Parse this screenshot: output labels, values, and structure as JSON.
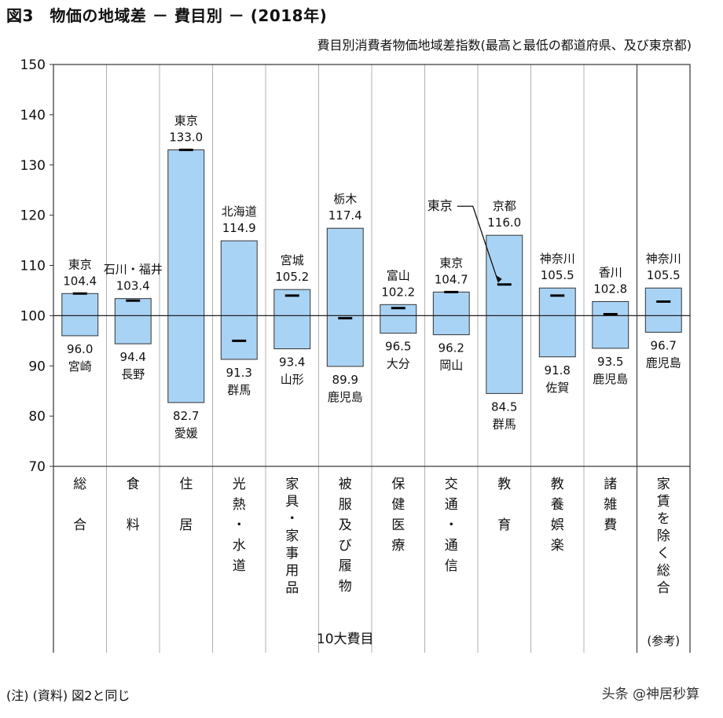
{
  "page": {
    "figure_title": "図3　物価の地域差 － 費目別 － (2018年)",
    "note": "(注) (資料) 図2と同じ",
    "watermark": "头条 @神居秒算"
  },
  "chart_data": {
    "type": "bar",
    "title": "",
    "subtitle": "費目別消費者物価地域差指数(最高と最低の都道府県、及び東京都)",
    "ylim": [
      70,
      150
    ],
    "yticks": [
      70,
      80,
      90,
      100,
      110,
      120,
      130,
      140,
      150
    ],
    "reference_line": 100,
    "group_label": "10大費目",
    "categories": [
      {
        "label": "総合",
        "max": 104.4,
        "max_pref": "東京",
        "min": 96.0,
        "min_pref": "宮崎",
        "tokyo": 104.4
      },
      {
        "label": "食料",
        "max": 103.4,
        "max_pref": "石川・福井",
        "min": 94.4,
        "min_pref": "長野",
        "tokyo": 103.0
      },
      {
        "label": "住居",
        "max": 133.0,
        "max_pref": "東京",
        "min": 82.7,
        "min_pref": "愛媛",
        "tokyo": 133.0
      },
      {
        "label": "光熱・水道",
        "max": 114.9,
        "max_pref": "北海道",
        "min": 91.3,
        "min_pref": "群馬",
        "tokyo": 95.0
      },
      {
        "label": "家具・家事用品",
        "max": 105.2,
        "max_pref": "宮城",
        "min": 93.4,
        "min_pref": "山形",
        "tokyo": 104.0
      },
      {
        "label": "被服及び履物",
        "max": 117.4,
        "max_pref": "栃木",
        "min": 89.9,
        "min_pref": "鹿児島",
        "tokyo": 99.5
      },
      {
        "label": "保健医療",
        "max": 102.2,
        "max_pref": "富山",
        "min": 96.5,
        "min_pref": "大分",
        "tokyo": 101.5
      },
      {
        "label": "交通・通信",
        "max": 104.7,
        "max_pref": "東京",
        "min": 96.2,
        "min_pref": "岡山",
        "tokyo": 104.7
      },
      {
        "label": "教育",
        "max": 116.0,
        "max_pref": "京都",
        "min": 84.5,
        "min_pref": "群馬",
        "tokyo": 106.2,
        "tokyo_callout": "東京"
      },
      {
        "label": "教養娯楽",
        "max": 105.5,
        "max_pref": "神奈川",
        "min": 91.8,
        "min_pref": "佐賀",
        "tokyo": 104.0
      },
      {
        "label": "諸雑費",
        "max": 102.8,
        "max_pref": "香川",
        "min": 93.5,
        "min_pref": "鹿児島",
        "tokyo": 100.3
      },
      {
        "label": "家賃を除く総合",
        "sublabel": "(参考)",
        "max": 105.5,
        "max_pref": "神奈川",
        "min": 96.7,
        "min_pref": "鹿児島",
        "tokyo": 102.8
      }
    ],
    "colors": {
      "bar_fill": "#a9d3f5",
      "bar_stroke": "#333333",
      "grid": "#b0b0b0",
      "tokyo_marker": "#000000"
    }
  }
}
